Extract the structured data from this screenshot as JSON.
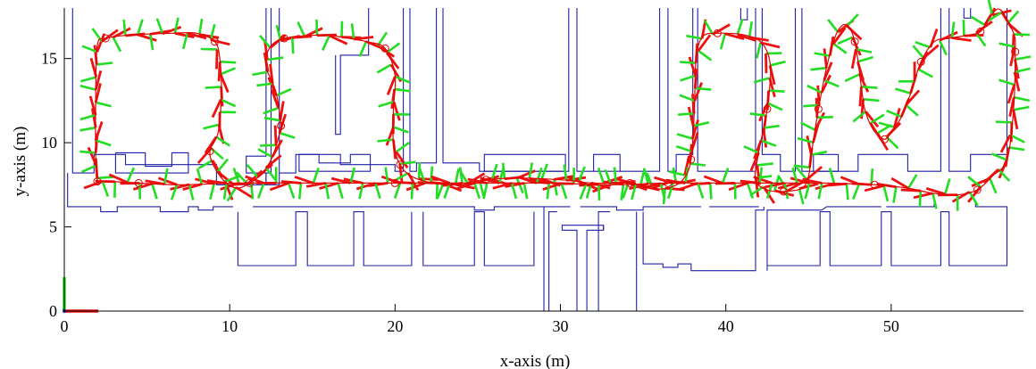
{
  "chart_data": {
    "type": "line",
    "title": "",
    "xlabel": "x-axis (m)",
    "ylabel": "y-axis (m)",
    "xlim": [
      0,
      58
    ],
    "ylim": [
      0,
      18
    ],
    "xticks": [
      0,
      10,
      20,
      30,
      40,
      50
    ],
    "yticks": [
      0,
      5,
      10,
      15
    ],
    "grid": false,
    "colors": {
      "map": "#1f1fa8",
      "trajectory": "#e00000",
      "x_axis_marker": "#ee1111",
      "y_axis_marker": "#22dd22"
    },
    "map_walls": [
      [
        [
          0.5,
          18
        ],
        [
          0.5,
          8.2
        ],
        [
          1.8,
          8.2
        ],
        [
          1.8,
          9.3
        ],
        [
          3.7,
          9.3
        ],
        [
          3.7,
          8.7
        ],
        [
          9.2,
          8.7
        ],
        [
          9.2,
          7.5
        ],
        [
          12.2,
          7.5
        ],
        [
          12.2,
          8.2
        ],
        [
          11,
          8.2
        ],
        [
          11,
          9.2
        ],
        [
          12.2,
          9.2
        ],
        [
          12.2,
          18
        ]
      ],
      [
        [
          0.2,
          8.2
        ],
        [
          0.2,
          6.2
        ],
        [
          2.2,
          6.2
        ],
        [
          2.2,
          5.9
        ],
        [
          3.2,
          5.9
        ],
        [
          3.2,
          6.2
        ],
        [
          5.8,
          6.2
        ],
        [
          5.8,
          5.9
        ],
        [
          7.5,
          5.9
        ],
        [
          7.5,
          6.2
        ],
        [
          8.1,
          6.2
        ],
        [
          8.1,
          6.0
        ],
        [
          9.0,
          6.0
        ],
        [
          9.0,
          6.2
        ],
        [
          10.2,
          6.2
        ]
      ],
      [
        [
          3.1,
          9.4
        ],
        [
          3.1,
          8.2
        ],
        [
          7.5,
          8.2
        ],
        [
          7.5,
          9.4
        ],
        [
          6.5,
          9.4
        ],
        [
          6.5,
          8.6
        ],
        [
          4.9,
          8.6
        ],
        [
          4.9,
          9.4
        ],
        [
          3.1,
          9.4
        ]
      ],
      [
        [
          11.4,
          6.2
        ],
        [
          21.0,
          6.2
        ]
      ],
      [
        [
          21.0,
          6.2
        ],
        [
          24.8,
          6.2
        ],
        [
          24.8,
          6.0
        ],
        [
          26.0,
          6.0
        ],
        [
          26.0,
          6.2
        ],
        [
          30.6,
          6.2
        ]
      ],
      [
        [
          31.2,
          6.2
        ],
        [
          33.4,
          6.2
        ],
        [
          33.4,
          6.0
        ],
        [
          35.0,
          6.0
        ],
        [
          35.0,
          6.2
        ],
        [
          38.5,
          6.2
        ]
      ],
      [
        [
          12.5,
          18
        ],
        [
          12.5,
          8.2
        ],
        [
          12.2,
          8.2
        ],
        [
          12.2,
          7.5
        ],
        [
          13.0,
          7.5
        ],
        [
          13.0,
          8.2
        ]
      ],
      [
        [
          13.0,
          18
        ],
        [
          13.0,
          8.2
        ],
        [
          14.0,
          8.2
        ],
        [
          14.0,
          9.3
        ],
        [
          16.7,
          9.3
        ],
        [
          16.7,
          8.7
        ],
        [
          20.0,
          8.7
        ],
        [
          20.0,
          8.3
        ],
        [
          20.5,
          8.3
        ],
        [
          20.5,
          18
        ]
      ],
      [
        [
          14.2,
          9.3
        ],
        [
          14.2,
          8.3
        ],
        [
          18.5,
          8.3
        ],
        [
          18.5,
          9.3
        ],
        [
          17.3,
          9.3
        ],
        [
          17.3,
          8.8
        ],
        [
          15.4,
          8.8
        ],
        [
          15.4,
          9.3
        ],
        [
          14.2,
          9.3
        ]
      ],
      [
        [
          16.4,
          15.2
        ],
        [
          16.4,
          10.5
        ],
        [
          16.7,
          10.5
        ],
        [
          16.7,
          15.2
        ],
        [
          18.4,
          15.2
        ],
        [
          18.4,
          18
        ]
      ],
      [
        [
          20.9,
          18
        ],
        [
          20.9,
          8.3
        ],
        [
          21.3,
          8.3
        ],
        [
          21.3,
          8.8
        ],
        [
          22.5,
          8.8
        ],
        [
          22.5,
          18
        ]
      ],
      [
        [
          22.9,
          18
        ],
        [
          22.9,
          8.8
        ],
        [
          25.1,
          8.8
        ],
        [
          25.1,
          8.3
        ],
        [
          30.5,
          8.3
        ],
        [
          30.5,
          18
        ]
      ],
      [
        [
          25.4,
          8.8
        ],
        [
          25.4,
          8.3
        ],
        [
          30.3,
          8.3
        ],
        [
          30.3,
          9.3
        ],
        [
          25.4,
          9.3
        ],
        [
          25.4,
          8.8
        ]
      ],
      [
        [
          31.0,
          18
        ],
        [
          31.0,
          8.3
        ],
        [
          36.0,
          8.3
        ],
        [
          36.0,
          18
        ]
      ],
      [
        [
          32.0,
          8.3
        ],
        [
          32.0,
          9.3
        ],
        [
          33.6,
          9.3
        ],
        [
          33.6,
          8.3
        ]
      ],
      [
        [
          36.5,
          18
        ],
        [
          36.5,
          8.3
        ],
        [
          37.0,
          8.3
        ],
        [
          37.0,
          9.3
        ],
        [
          38.0,
          9.3
        ],
        [
          38.0,
          18
        ]
      ],
      [
        [
          38.3,
          18
        ],
        [
          38.3,
          8.3
        ],
        [
          41.8,
          8.3
        ],
        [
          41.8,
          18
        ]
      ],
      [
        [
          42.2,
          18
        ],
        [
          42.2,
          9.3
        ],
        [
          43.3,
          9.3
        ],
        [
          43.3,
          8.3
        ],
        [
          44.2,
          8.3
        ],
        [
          44.2,
          18
        ]
      ],
      [
        [
          44.6,
          18
        ],
        [
          44.6,
          8.3
        ],
        [
          48.0,
          8.3
        ],
        [
          48.0,
          9.3
        ],
        [
          51.0,
          9.3
        ],
        [
          51.0,
          8.3
        ],
        [
          53.0,
          8.3
        ],
        [
          53.0,
          18
        ]
      ],
      [
        [
          45.3,
          9.3
        ],
        [
          45.3,
          8.3
        ],
        [
          46.8,
          8.3
        ],
        [
          46.8,
          9.3
        ],
        [
          45.3,
          9.3
        ]
      ],
      [
        [
          53.5,
          18
        ],
        [
          53.5,
          8.3
        ],
        [
          54.8,
          8.3
        ],
        [
          54.8,
          9.3
        ],
        [
          57.0,
          9.3
        ],
        [
          57.0,
          18
        ]
      ],
      [
        [
          40.9,
          18
        ],
        [
          40.9,
          17.3
        ],
        [
          41.3,
          17.3
        ],
        [
          41.3,
          18
        ]
      ],
      [
        [
          54.4,
          18
        ],
        [
          54.4,
          17.4
        ],
        [
          54.8,
          17.4
        ],
        [
          54.8,
          18
        ]
      ],
      [
        [
          10.5,
          5.9
        ],
        [
          10.5,
          2.7
        ],
        [
          14.0,
          2.7
        ],
        [
          14.0,
          5.9
        ],
        [
          14.7,
          5.9
        ],
        [
          14.7,
          2.7
        ],
        [
          17.5,
          2.7
        ],
        [
          17.5,
          5.9
        ],
        [
          18.1,
          5.9
        ],
        [
          18.1,
          2.7
        ],
        [
          21.0,
          2.7
        ],
        [
          21.0,
          5.9
        ]
      ],
      [
        [
          21.7,
          5.9
        ],
        [
          21.7,
          2.7
        ],
        [
          24.8,
          2.7
        ],
        [
          24.8,
          5.9
        ],
        [
          25.4,
          5.9
        ],
        [
          25.4,
          2.7
        ],
        [
          28.4,
          2.7
        ],
        [
          28.4,
          5.9
        ]
      ],
      [
        [
          29.0,
          0
        ],
        [
          29.0,
          6.2
        ]
      ],
      [
        [
          29.3,
          0
        ],
        [
          29.3,
          5.9
        ],
        [
          29.8,
          5.9
        ]
      ],
      [
        [
          31.0,
          0
        ],
        [
          31.0,
          4.8
        ],
        [
          30.1,
          4.8
        ],
        [
          30.1,
          5.1
        ],
        [
          31.0,
          5.1
        ],
        [
          31.8,
          5.1
        ],
        [
          32.6,
          5.1
        ],
        [
          32.6,
          4.8
        ],
        [
          31.6,
          4.8
        ],
        [
          31.6,
          0
        ]
      ],
      [
        [
          32.3,
          0
        ],
        [
          32.3,
          5.9
        ],
        [
          33.0,
          5.9
        ]
      ],
      [
        [
          32.6,
          5.1
        ],
        [
          32.6,
          4.8
        ]
      ],
      [
        [
          34.6,
          0
        ],
        [
          34.6,
          5.9
        ]
      ],
      [
        [
          35.0,
          5.9
        ],
        [
          35.0,
          2.8
        ],
        [
          36.2,
          2.8
        ],
        [
          36.2,
          2.6
        ],
        [
          37.1,
          2.6
        ],
        [
          37.1,
          2.8
        ],
        [
          37.9,
          2.8
        ],
        [
          37.9,
          2.4
        ],
        [
          41.8,
          2.4
        ],
        [
          41.8,
          6.0
        ],
        [
          42.3,
          6.0
        ],
        [
          42.3,
          6.2
        ]
      ],
      [
        [
          42.5,
          2.4
        ],
        [
          42.5,
          6.0
        ],
        [
          45.8,
          6.0
        ],
        [
          46.1,
          6.2
        ],
        [
          49.4,
          6.2
        ]
      ],
      [
        [
          42.5,
          2.7
        ],
        [
          45.7,
          2.7
        ],
        [
          45.7,
          5.9
        ],
        [
          46.3,
          5.9
        ],
        [
          46.3,
          2.7
        ],
        [
          49.4,
          2.7
        ],
        [
          49.4,
          5.9
        ],
        [
          50.0,
          5.9
        ],
        [
          50.0,
          2.7
        ],
        [
          53.0,
          2.7
        ],
        [
          53.0,
          5.9
        ],
        [
          53.5,
          5.9
        ],
        [
          53.5,
          2.7
        ],
        [
          57.0,
          2.7
        ],
        [
          57.0,
          6.2
        ],
        [
          55.1,
          6.2
        ],
        [
          55.1,
          6.4
        ]
      ],
      [
        [
          49.7,
          6.2
        ],
        [
          52.6,
          6.2
        ],
        [
          52.6,
          6.4
        ]
      ],
      [
        [
          39.0,
          6.2
        ],
        [
          42.0,
          6.2
        ]
      ]
    ],
    "trajectory": [
      [
        2.0,
        7.7
      ],
      [
        1.9,
        9.2
      ],
      [
        1.9,
        13
      ],
      [
        2.0,
        15.8
      ],
      [
        2.5,
        16.2
      ],
      [
        4,
        16.4
      ],
      [
        6.5,
        16.5
      ],
      [
        8,
        16.5
      ],
      [
        9.1,
        16
      ],
      [
        9.4,
        15
      ],
      [
        9.5,
        13
      ],
      [
        9.3,
        10.6
      ],
      [
        8.8,
        9.5
      ],
      [
        9.1,
        8.5
      ],
      [
        9.8,
        7.6
      ],
      [
        10.5,
        7.3
      ],
      [
        11.2,
        7.6
      ],
      [
        12,
        8.2
      ],
      [
        12.6,
        9.2
      ],
      [
        13.0,
        10.5
      ],
      [
        13.1,
        11.0
      ],
      [
        12.8,
        13
      ],
      [
        12.2,
        14.5
      ],
      [
        12.4,
        15.6
      ],
      [
        13.3,
        16.2
      ],
      [
        15.6,
        16.4
      ],
      [
        16.6,
        16.3
      ],
      [
        18.3,
        16.0
      ],
      [
        19.4,
        15.6
      ],
      [
        20.0,
        14
      ],
      [
        19.9,
        12
      ],
      [
        19.9,
        10
      ],
      [
        20.3,
        8.7
      ],
      [
        21,
        8.0
      ],
      [
        22.3,
        7.6
      ],
      [
        24,
        7.5
      ],
      [
        25.5,
        7.8
      ],
      [
        27.5,
        7.9
      ],
      [
        30,
        7.8
      ],
      [
        32,
        7.6
      ],
      [
        34.2,
        7.6
      ],
      [
        35.5,
        7.3
      ],
      [
        36.5,
        7.3
      ],
      [
        37.4,
        7.8
      ],
      [
        37.9,
        9.0
      ],
      [
        38.1,
        12
      ],
      [
        38.2,
        15
      ],
      [
        38.6,
        16.3
      ],
      [
        39.5,
        16.5
      ],
      [
        41.1,
        16.4
      ],
      [
        42.2,
        15.9
      ],
      [
        42.7,
        14.5
      ],
      [
        42.5,
        12
      ],
      [
        42.0,
        9.5
      ],
      [
        41.8,
        7.8
      ],
      [
        42.5,
        7.2
      ],
      [
        43.5,
        7.1
      ],
      [
        44.6,
        7.3
      ],
      [
        45.0,
        8.0
      ],
      [
        45.2,
        9.5
      ],
      [
        45.6,
        12
      ],
      [
        46.1,
        14.5
      ],
      [
        46.7,
        16.5
      ],
      [
        47.3,
        17.0
      ],
      [
        47.8,
        16.0
      ],
      [
        48.2,
        13.3
      ],
      [
        48.4,
        12
      ],
      [
        48.9,
        10.8
      ],
      [
        49.6,
        10.2
      ],
      [
        50.1,
        10.8
      ],
      [
        50.6,
        11.5
      ],
      [
        51.2,
        13.0
      ],
      [
        51.8,
        14.8
      ],
      [
        52.6,
        16.0
      ],
      [
        53.5,
        16.2
      ],
      [
        54.7,
        16.4
      ],
      [
        55.4,
        16.6
      ],
      [
        56.0,
        17.5
      ],
      [
        56.6,
        17.9
      ],
      [
        57.4,
        16.5
      ],
      [
        57.5,
        15.4
      ],
      [
        57.4,
        12
      ],
      [
        57.0,
        9.0
      ],
      [
        56.1,
        8.0
      ],
      [
        55.2,
        7.2
      ],
      [
        54.0,
        6.9
      ],
      [
        52.5,
        7.0
      ],
      [
        51.0,
        7.3
      ],
      [
        49.0,
        7.5
      ],
      [
        46.0,
        7.6
      ],
      [
        43.0,
        7.6
      ],
      [
        40.0,
        7.6
      ],
      [
        36.5,
        7.6
      ],
      [
        33.0,
        7.5
      ],
      [
        29.5,
        7.6
      ],
      [
        25.0,
        7.6
      ],
      [
        20.0,
        7.6
      ],
      [
        15.3,
        7.6
      ],
      [
        10.5,
        7.6
      ],
      [
        7.0,
        7.5
      ],
      [
        4.5,
        7.6
      ],
      [
        2.8,
        7.7
      ],
      [
        2.0,
        7.7
      ]
    ],
    "origin_marker": {
      "x": 0,
      "y": 0
    }
  }
}
